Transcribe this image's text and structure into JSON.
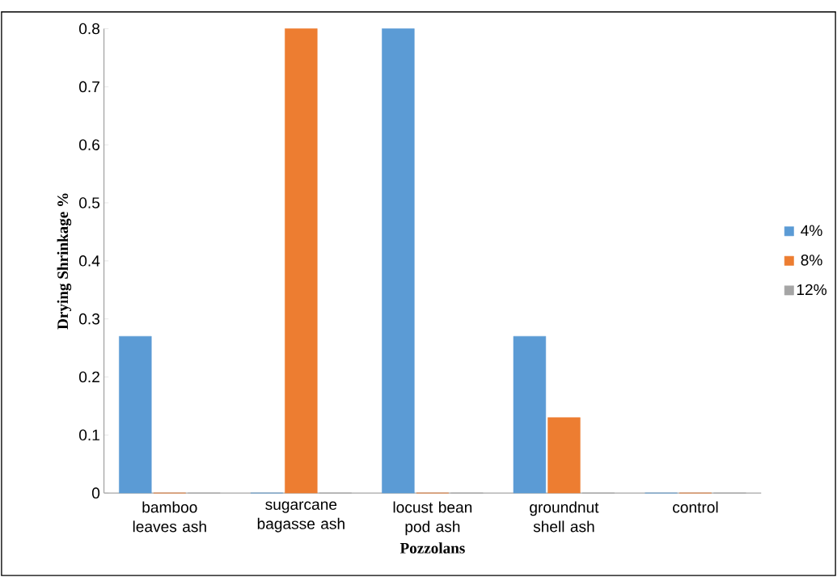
{
  "chart_data": {
    "type": "bar",
    "xlabel": "Pozzolans",
    "ylabel": "Drying Shrinkage %",
    "categories": [
      "bamboo leaves ash",
      "sugarcane bagasse ash",
      "locust bean pod ash",
      "groundnut shell ash",
      "control"
    ],
    "series": [
      {
        "name": "4%",
        "color": "#5b9bd5",
        "values": [
          0.27,
          0,
          0.8,
          0.27,
          0
        ]
      },
      {
        "name": "8%",
        "color": "#ed7d31",
        "values": [
          0,
          0.8,
          0,
          0.13,
          0
        ]
      },
      {
        "name": "12%",
        "color": "#a5a5a5",
        "values": [
          0,
          0,
          0,
          0,
          0
        ]
      }
    ],
    "ylim": [
      0,
      0.8
    ],
    "yticks": [
      0,
      0.1,
      0.2,
      0.3,
      0.4,
      0.5,
      0.6,
      0.7,
      0.8
    ],
    "legend": "right",
    "grid": false
  }
}
